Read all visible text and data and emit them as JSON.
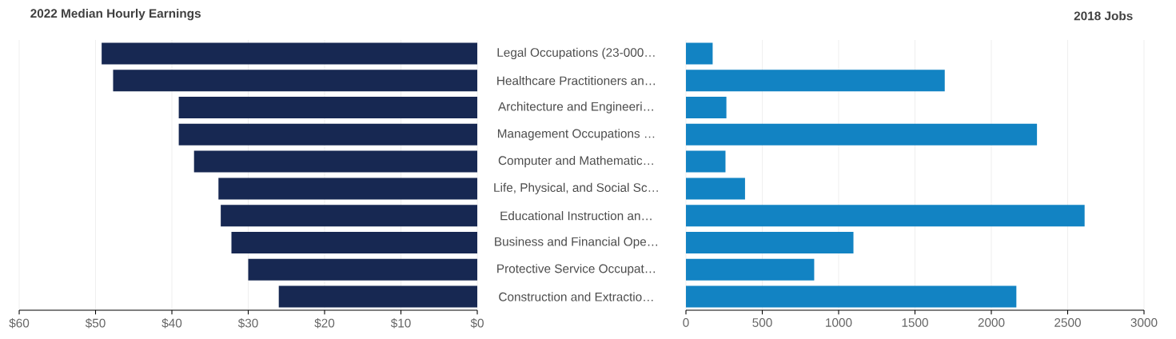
{
  "chart_data": [
    {
      "type": "bar",
      "orientation": "horizontal",
      "title": "2022 Median Hourly Earnings",
      "categories": [
        "Legal Occupations (23-000…",
        "Healthcare Practitioners an…",
        "Architecture and Engineeri…",
        "Management Occupations …",
        "Computer and Mathematic…",
        "Life, Physical, and Social Sc…",
        "Educational Instruction an…",
        "Business and Financial Ope…",
        "Protective Service Occupat…",
        "Construction and Extractio…"
      ],
      "values": [
        49.2,
        47.7,
        39.1,
        39.1,
        37.1,
        33.9,
        33.6,
        32.2,
        30.0,
        26.0
      ],
      "color": "#172852",
      "xlim": [
        60,
        0
      ],
      "xticks": [
        {
          "value": 60,
          "label": "$60"
        },
        {
          "value": 50,
          "label": "$50"
        },
        {
          "value": 40,
          "label": "$40"
        },
        {
          "value": 30,
          "label": "$30"
        },
        {
          "value": 20,
          "label": "$20"
        },
        {
          "value": 10,
          "label": "$10"
        },
        {
          "value": 0,
          "label": "$0"
        }
      ],
      "grid": "x"
    },
    {
      "type": "bar",
      "orientation": "horizontal",
      "title": "2018 Jobs",
      "categories": [
        null,
        null,
        null,
        null,
        null,
        null,
        null,
        null,
        null,
        null
      ],
      "values": [
        175,
        1695,
        265,
        2299,
        259,
        387,
        2611,
        1097,
        840,
        2164
      ],
      "color": "#1283c3",
      "xlim": [
        0,
        3000
      ],
      "xticks": [
        0,
        500,
        1000,
        1500,
        2000,
        2500,
        3000
      ],
      "grid": "x"
    }
  ]
}
